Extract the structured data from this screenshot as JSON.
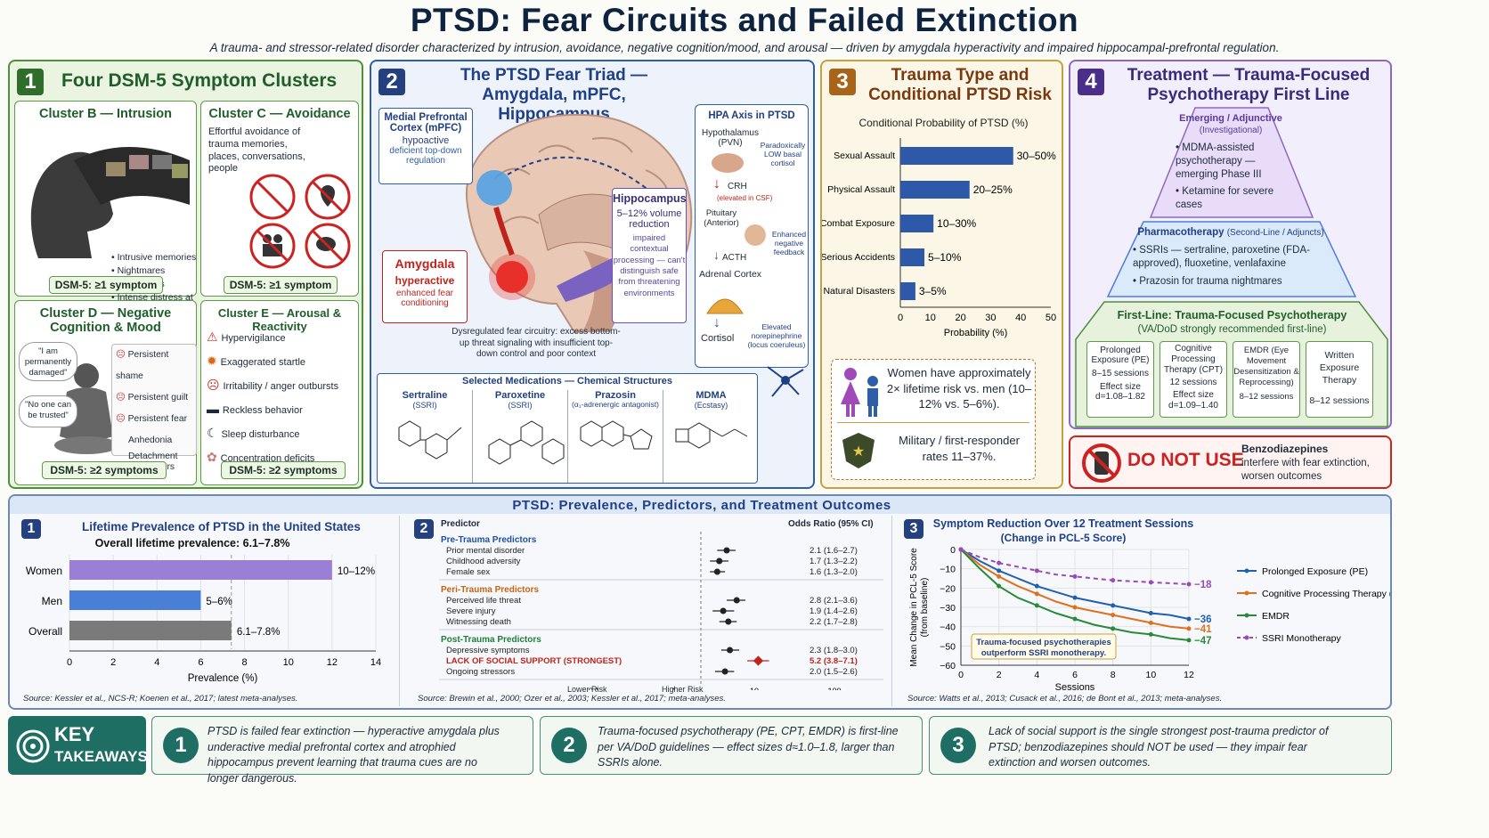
{
  "header": {
    "title": "PTSD: Fear Circuits and Failed Extinction",
    "subtitle": "A trauma- and stressor-related disorder characterized by intrusion, avoidance, negative cognition/mood, and arousal — driven by amygdala hyperactivity and impaired hippocampal-prefrontal regulation."
  },
  "panel1": {
    "num": "1",
    "title": "Four DSM-5 Symptom Clusters",
    "b": {
      "title": "Cluster B — Intrusion",
      "items": [
        "Intrusive memories",
        "Nightmares",
        "Flashbacks",
        "Intense distress at trauma cues"
      ],
      "dsm": "DSM-5: ≥1 symptom"
    },
    "c": {
      "title": "Cluster C — Avoidance",
      "text": "Effortful avoidance of trauma memories, places, conversations, people",
      "dsm": "DSM-5: ≥1 symptom"
    },
    "d": {
      "title": "Cluster D — Negative Cognition & Mood",
      "bubble1": "\"I am permanently damaged\"",
      "bubble2": "\"No one can be trusted\"",
      "items": [
        "Persistent shame",
        "Persistent guilt",
        "Persistent fear",
        "Anhedonia",
        "Detachment from others"
      ],
      "dsm": "DSM-5: ≥2 symptoms"
    },
    "e": {
      "title": "Cluster E — Arousal & Reactivity",
      "items": [
        "Hypervigilance",
        "Exaggerated startle",
        "Irritability / anger outbursts",
        "Reckless behavior",
        "Sleep disturbance",
        "Concentration deficits"
      ],
      "dsm": "DSM-5: ≥2 symptoms"
    }
  },
  "panel2": {
    "num": "2",
    "title": "The PTSD Fear Triad — Amygdala, mPFC, Hippocampus",
    "mpfc": {
      "name": "Medial Prefrontal Cortex (mPFC)",
      "state": "hypoactive",
      "desc": "deficient top-down regulation"
    },
    "amyg": {
      "name": "Amygdala",
      "state": "hyperactive",
      "desc": "enhanced fear conditioning"
    },
    "hippo": {
      "name": "Hippocampus",
      "state": "5–12% volume reduction",
      "desc": "impaired contextual processing — can't distinguish safe from threatening environments"
    },
    "circuit": "Dysregulated fear circuitry: excess bottom-up threat signaling with insufficient top-down control and poor context",
    "hpa": {
      "title": "HPA Axis in PTSD",
      "hyp": "Hypothalamus (PVN)",
      "crh": "CRH",
      "crh_note": "(elevated in CSF)",
      "pit": "Pituitary (Anterior)",
      "acth": "ACTH",
      "adrenal": "Adrenal Cortex",
      "cortisol": "Cortisol",
      "paradox": "Paradoxically LOW basal cortisol",
      "feedback": "Enhanced negative feedback",
      "ne": "Elevated norepinephrine (locus coeruleus)"
    },
    "meds": {
      "title": "Selected Medications — Chemical Structures",
      "items": [
        {
          "name": "Sertraline",
          "cls": "(SSRI)"
        },
        {
          "name": "Paroxetine",
          "cls": "(SSRI)"
        },
        {
          "name": "Prazosin",
          "cls": "(α₁-adrenergic antagonist)"
        },
        {
          "name": "MDMA",
          "cls": "(Ecstasy)"
        }
      ]
    }
  },
  "panel3": {
    "num": "3",
    "title": "Trauma Type and Conditional PTSD Risk",
    "chart_title": "Conditional Probability of PTSD (%)",
    "xlabel": "Probability (%)",
    "box1": "Women have approximately 2× lifetime risk vs. men (10–12% vs. 5–6%).",
    "box2": "Military / first-responder rates 11–37%."
  },
  "panel4": {
    "num": "4",
    "title": "Treatment — Trauma-Focused Psychotherapy First Line",
    "tier1": {
      "title": "Emerging / Adjunctive",
      "sub": "(Investigational)",
      "items": [
        "MDMA-assisted psychotherapy — emerging Phase III",
        "Ketamine for severe cases"
      ]
    },
    "tier2": {
      "title": "Pharmacotherapy",
      "sub": "(Second-Line / Adjuncts)",
      "items": [
        "SSRIs — sertraline, paroxetine (FDA-approved), fluoxetine, venlafaxine",
        "Prazosin for trauma nightmares"
      ]
    },
    "tier3": {
      "title": "First-Line: Trauma-Focused Psychotherapy",
      "sub": "(VA/DoD strongly recommended first-line)"
    },
    "therapies": [
      {
        "name": "Prolonged Exposure (PE)",
        "sessions": "8–15 sessions",
        "effect": "Effect size d=1.08–1.82"
      },
      {
        "name": "Cognitive Processing Therapy (CPT)",
        "sessions": "12 sessions",
        "effect": "Effect size d=1.09–1.40"
      },
      {
        "name": "EMDR (Eye Movement Desensitization & Reprocessing)",
        "sessions": "8–12 sessions",
        "effect": ""
      },
      {
        "name": "Written Exposure Therapy",
        "sessions": "8–12 sessions",
        "effect": ""
      }
    ],
    "donot": {
      "label": "DO NOT USE",
      "drug": "Benzodiazepines",
      "text": "interfere with fear extinction, worsen outcomes"
    }
  },
  "bottom": {
    "title": "PTSD: Prevalence, Predictors, and Treatment Outcomes",
    "p1": {
      "num": "1",
      "title": "Lifetime Prevalence of PTSD in the United States",
      "subtitle": "Overall lifetime prevalence: 6.1–7.8%",
      "xlabel": "Prevalence (%)",
      "source": "Source: Kessler et al., NCS-R; Koenen et al., 2017; latest meta-analyses."
    },
    "p2": {
      "num": "2",
      "h_pred": "Predictor",
      "h_or": "Odds Ratio (95% CI)",
      "lower": "Lower Risk",
      "higher": "Higher Risk",
      "source": "Source: Brewin et al., 2000; Ozer et al., 2003; Kessler et al., 2017; meta-analyses."
    },
    "p3": {
      "num": "3",
      "title": "Symptom Reduction Over 12 Treatment Sessions",
      "subtitle": "(Change in PCL-5 Score)",
      "ylabel": "Mean Change in PCL-5 Score (from baseline)",
      "xlabel": "Sessions",
      "note": "Trauma-focused psychotherapies outperform SSRI monotherapy.",
      "source": "Source: Watts et al., 2013; Cusack et al., 2016; de Bont et al., 2013; meta-analyses."
    }
  },
  "takeaways": {
    "label1": "KEY",
    "label2": "TAKEAWAYS",
    "items": [
      {
        "num": "1",
        "text": "PTSD is failed fear extinction — hyperactive amygdala plus underactive medial prefrontal cortex and atrophied hippocampus prevent learning that trauma cues are no longer dangerous."
      },
      {
        "num": "2",
        "text": "Trauma-focused psychotherapy (PE, CPT, EMDR) is first-line per VA/DoD guidelines — effect sizes d≈1.0–1.8, larger than SSRIs alone."
      },
      {
        "num": "3",
        "text": "Lack of social support is the single strongest post-trauma predictor of PTSD; benzodiazepines should NOT be used — they impair fear extinction and worsen outcomes."
      }
    ]
  },
  "chart_data": [
    {
      "type": "bar",
      "orientation": "horizontal",
      "title": "Conditional Probability of PTSD (%)",
      "xlabel": "Probability (%)",
      "xlim": [
        0,
        50
      ],
      "xticks": [
        0,
        10,
        20,
        30,
        40,
        50
      ],
      "categories": [
        "Sexual Assault",
        "Physical Assault",
        "Combat Exposure",
        "Serious Accidents",
        "Natural Disasters"
      ],
      "values": [
        37.5,
        23,
        11,
        8,
        5
      ],
      "labels": [
        "30–50%",
        "20–25%",
        "10–30%",
        "5–10%",
        "3–5%"
      ],
      "color": "#2e58a8"
    },
    {
      "type": "bar",
      "orientation": "horizontal",
      "title": "Lifetime Prevalence of PTSD in the United States",
      "xlabel": "Prevalence (%)",
      "xlim": [
        0,
        14
      ],
      "xticks": [
        0,
        2,
        4,
        6,
        8,
        10,
        12,
        14
      ],
      "categories": [
        "Women",
        "Men",
        "Overall"
      ],
      "values": [
        12,
        6,
        7.4
      ],
      "labels": [
        "10–12%",
        "5–6%",
        "6.1–7.8%"
      ],
      "colors": [
        "#9b7fd4",
        "#4a7fd8",
        "#7a7a7a"
      ]
    },
    {
      "type": "forest",
      "xscale": "log",
      "xticks": [
        0.1,
        1,
        10,
        100
      ],
      "groups": [
        {
          "name": "Pre-Trauma Predictors",
          "color": "#1f4fa8",
          "rows": [
            {
              "label": "Prior mental disorder",
              "or": 2.1,
              "lo": 1.6,
              "hi": 2.7,
              "text": "2.1 (1.6–2.7)"
            },
            {
              "label": "Childhood adversity",
              "or": 1.7,
              "lo": 1.3,
              "hi": 2.2,
              "text": "1.7 (1.3–2.2)"
            },
            {
              "label": "Female sex",
              "or": 1.6,
              "lo": 1.3,
              "hi": 2.0,
              "text": "1.6 (1.3–2.0)"
            }
          ]
        },
        {
          "name": "Peri-Trauma Predictors",
          "color": "#c86414",
          "rows": [
            {
              "label": "Perceived life threat",
              "or": 2.8,
              "lo": 2.1,
              "hi": 3.6,
              "text": "2.8 (2.1–3.6)"
            },
            {
              "label": "Severe injury",
              "or": 1.9,
              "lo": 1.4,
              "hi": 2.6,
              "text": "1.9 (1.4–2.6)"
            },
            {
              "label": "Witnessing death",
              "or": 2.2,
              "lo": 1.7,
              "hi": 2.8,
              "text": "2.2 (1.7–2.8)"
            }
          ]
        },
        {
          "name": "Post-Trauma Predictors",
          "color": "#1f7f3a",
          "rows": [
            {
              "label": "Depressive symptoms",
              "or": 2.3,
              "lo": 1.8,
              "hi": 3.0,
              "text": "2.3 (1.8–3.0)"
            },
            {
              "label": "LACK OF SOCIAL SUPPORT (STRONGEST)",
              "or": 5.2,
              "lo": 3.8,
              "hi": 7.1,
              "text": "5.2 (3.8–7.1)",
              "highlight": true
            },
            {
              "label": "Ongoing stressors",
              "or": 2.0,
              "lo": 1.5,
              "hi": 2.6,
              "text": "2.0 (1.5–2.6)"
            }
          ]
        }
      ]
    },
    {
      "type": "line",
      "title": "Symptom Reduction Over 12 Treatment Sessions",
      "xlabel": "Sessions",
      "ylabel": "Mean Change in PCL-5 Score (from baseline)",
      "xlim": [
        0,
        12
      ],
      "ylim": [
        -60,
        0
      ],
      "xticks": [
        0,
        2,
        4,
        6,
        8,
        10,
        12
      ],
      "yticks": [
        0,
        -10,
        -20,
        -30,
        -40,
        -50,
        -60
      ],
      "x": [
        0,
        1,
        2,
        3,
        4,
        5,
        6,
        7,
        8,
        9,
        10,
        11,
        12
      ],
      "series": [
        {
          "name": "Prolonged Exposure (PE)",
          "color": "#2060b0",
          "end_label": "−36",
          "values": [
            0,
            -6,
            -11,
            -15,
            -19,
            -22,
            -25,
            -27,
            -29,
            -31,
            -33,
            -34,
            -36
          ]
        },
        {
          "name": "Cognitive Processing Therapy (CPT)",
          "color": "#e0701e",
          "end_label": "−41",
          "values": [
            0,
            -8,
            -14,
            -19,
            -23,
            -27,
            -30,
            -32,
            -34,
            -36,
            -38,
            -40,
            -41
          ]
        },
        {
          "name": "EMDR",
          "color": "#2a8a3a",
          "end_label": "−47",
          "values": [
            0,
            -10,
            -19,
            -25,
            -29,
            -33,
            -36,
            -39,
            -41,
            -43,
            -44,
            -46,
            -47
          ]
        },
        {
          "name": "SSRI Monotherapy",
          "color": "#9a4ab8",
          "dashed": true,
          "end_label": "−18",
          "values": [
            0,
            -4,
            -7,
            -9,
            -11,
            -13,
            -14,
            -15,
            -16,
            -16.5,
            -17,
            -17.5,
            -18
          ]
        }
      ]
    }
  ]
}
